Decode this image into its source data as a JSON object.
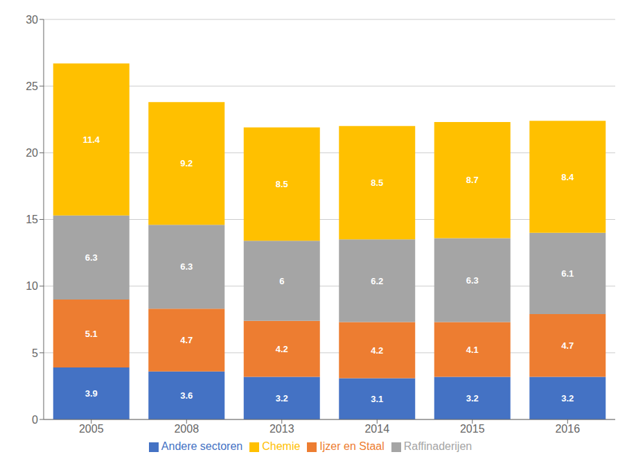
{
  "chart_data": {
    "type": "bar",
    "stacked": true,
    "categories": [
      "2005",
      "2008",
      "2013",
      "2014",
      "2015",
      "2016"
    ],
    "series": [
      {
        "name": "Andere sectoren",
        "color": "#4472C4",
        "values": [
          3.9,
          3.6,
          3.2,
          3.1,
          3.2,
          3.2
        ]
      },
      {
        "name": "Ijzer en Staal",
        "color": "#ED7D31",
        "values": [
          5.1,
          4.7,
          4.2,
          4.2,
          4.1,
          4.7
        ]
      },
      {
        "name": "Raffinaderijen",
        "color": "#A5A5A5",
        "values": [
          6.3,
          6.3,
          6.0,
          6.2,
          6.3,
          6.1
        ],
        "value_labels": [
          "6.3",
          "6.3",
          "6",
          "6.2",
          "6.3",
          "6.1"
        ]
      },
      {
        "name": "Chemie",
        "color": "#FFC000",
        "values": [
          11.4,
          9.2,
          8.5,
          8.5,
          8.7,
          8.4
        ]
      }
    ],
    "ylim": [
      0,
      30
    ],
    "yticks": [
      0,
      5,
      10,
      15,
      20,
      25,
      30
    ],
    "grid": true,
    "legend": "bottom",
    "data_labels": true
  }
}
